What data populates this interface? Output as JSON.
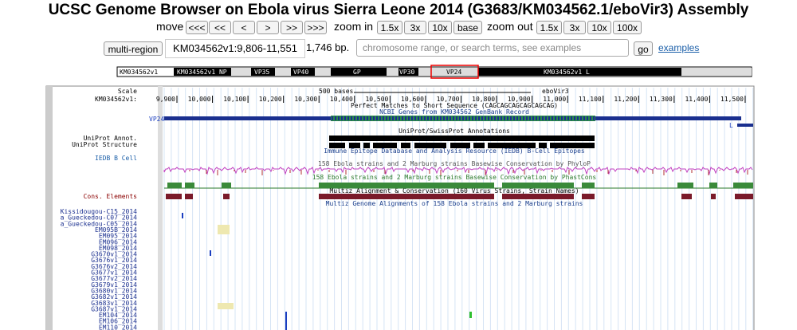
{
  "header": {
    "title": "UCSC Genome Browser on Ebola virus Sierra Leone 2014 (G3683/KM034562.1/eboVir3) Assembly"
  },
  "nav": {
    "move": "move",
    "move_buttons": [
      "<<<",
      "<<",
      "<",
      ">",
      ">>",
      ">>>"
    ],
    "zoom_in": "zoom in",
    "zoom_in_buttons": [
      "1.5x",
      "3x",
      "10x",
      "base"
    ],
    "zoom_out": "zoom out",
    "zoom_out_buttons": [
      "1.5x",
      "3x",
      "10x",
      "100x"
    ]
  },
  "position": {
    "multi_region": "multi-region",
    "value": "KM034562v1:9,806-11,551",
    "size": "1,746 bp.",
    "search_placeholder": "chromosome range, or search terms, see examples",
    "go": "go",
    "examples": "examples"
  },
  "ideogram": {
    "chrom": "KM034562v1",
    "genes": [
      "KM034562v1 NP",
      "VP35",
      "VP40",
      "GP",
      "VP30",
      "VP24",
      "KM034562v1 L"
    ]
  },
  "tracks": {
    "scale_label": "Scale",
    "chrom_label": "KM034562v1:",
    "scale_bar": "500 bases",
    "assembly": "eboVir3",
    "ruler": [
      "9,900",
      "10,000",
      "10,100",
      "10,200",
      "10,300",
      "10,400",
      "10,500",
      "10,600",
      "10,700",
      "10,800",
      "10,900",
      "11,000",
      "11,100",
      "11,200",
      "11,300",
      "11,400",
      "11,500"
    ],
    "titles": [
      "Perfect Matches to Short Sequence (CAGCAGCAGCAGCAGCAG)",
      "NCBI Genes from KM034562 GenBank Record",
      "UniProt/SwissProt Annotations",
      "Immune Epitope Database and Analysis Resource (IEDB) B-Cell Epitopes",
      "158 Ebola strains and 2 Marburg strains Basewise Conservation by PhyloP",
      "158 Ebola strains and 2 Marburg strains Basewise Conservation by PhastCons",
      "Multiz Alignment & Conservation (160 Virus Strains, Strain Names)",
      "Multiz Genome Alignments of 158 Ebola strains and 2 Marburg strains"
    ],
    "gene_vp24": "VP24",
    "gene_l": "L",
    "side_labels": [
      "UniProt Annot.",
      "UniProt Structure",
      "IEDB B Cell",
      "Cons. Elements"
    ],
    "strains": [
      "Kissidougou-C15_2014",
      "a_Gueckedou-C07_2014",
      "a_Gueckedou-C05_2014",
      "EM095B_2014",
      "EM095_2014",
      "EM096_2014",
      "EM098_2014",
      "G3670v1_2014",
      "G3676v1_2014",
      "G3676v2_2014",
      "G3677v1_2014",
      "G3677v2_2014",
      "G3679v1_2014",
      "G3680v1_2014",
      "G3682v1_2014",
      "G3683v1_2014",
      "G3687v1_2014",
      "EM104_2014",
      "EM106_2014",
      "EM110_2014"
    ]
  }
}
